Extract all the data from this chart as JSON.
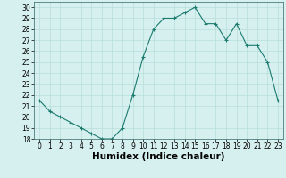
{
  "x": [
    0,
    1,
    2,
    3,
    4,
    5,
    6,
    7,
    8,
    9,
    10,
    11,
    12,
    13,
    14,
    15,
    16,
    17,
    18,
    19,
    20,
    21,
    22,
    23
  ],
  "y": [
    21.5,
    20.5,
    20.0,
    19.5,
    19.0,
    18.5,
    18.0,
    18.0,
    19.0,
    22.0,
    25.5,
    28.0,
    29.0,
    29.0,
    29.5,
    30.0,
    28.5,
    28.5,
    27.0,
    28.5,
    26.5,
    26.5,
    25.0,
    21.5
  ],
  "line_color": "#1a7a6e",
  "marker": "+",
  "bg_color": "#d6f0ef",
  "grid_color": "#b8deda",
  "xlabel": "Humidex (Indice chaleur)",
  "ylim": [
    18,
    30.5
  ],
  "xlim": [
    -0.5,
    23.5
  ],
  "yticks": [
    18,
    19,
    20,
    21,
    22,
    23,
    24,
    25,
    26,
    27,
    28,
    29,
    30
  ],
  "xticks": [
    0,
    1,
    2,
    3,
    4,
    5,
    6,
    7,
    8,
    9,
    10,
    11,
    12,
    13,
    14,
    15,
    16,
    17,
    18,
    19,
    20,
    21,
    22,
    23
  ],
  "tick_fontsize": 5.5,
  "xlabel_fontsize": 7.5
}
